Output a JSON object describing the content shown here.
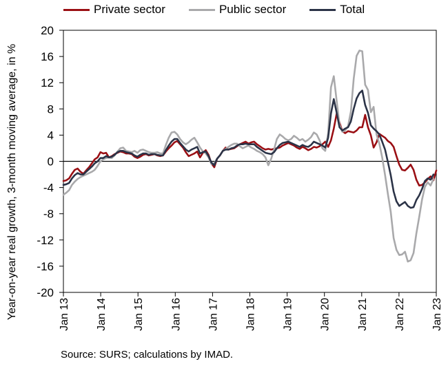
{
  "legend": [
    {
      "label": "Private sector",
      "color": "#9a0f14"
    },
    {
      "label": "Public sector",
      "color": "#a9a9ab"
    },
    {
      "label": "Total",
      "color": "#2b3347"
    }
  ],
  "source": "Source: SURS; calculations by IMAD.",
  "chart_data": {
    "type": "line",
    "title": "",
    "ylabel": "Year-on-year real growth, 3-month moving average, in %",
    "xlabel": "",
    "ylim": [
      -20,
      20
    ],
    "yticks": [
      20,
      16,
      12,
      8,
      4,
      0,
      -4,
      -8,
      -12,
      -16,
      -20
    ],
    "xrange": [
      "Jan 13",
      "Jan 23"
    ],
    "xticks": [
      "Jan 13",
      "Jan 14",
      "Jan 15",
      "Jan 16",
      "Jan 17",
      "Jan 18",
      "Jan 19",
      "Jan 20",
      "Jan 21",
      "Jan 22",
      "Jan 23"
    ],
    "grid": false,
    "legend_position": "top",
    "series": [
      {
        "name": "Private sector",
        "color": "#9a0f14",
        "values": [
          -3.0,
          -2.9,
          -2.6,
          -1.9,
          -1.3,
          -1.1,
          -1.6,
          -1.9,
          -1.4,
          -0.9,
          -0.3,
          0.3,
          0.6,
          1.4,
          1.2,
          1.3,
          0.6,
          0.8,
          1.1,
          1.3,
          1.5,
          1.4,
          1.2,
          1.2,
          1.1,
          0.7,
          0.5,
          0.7,
          1.0,
          1.1,
          0.9,
          1.0,
          1.1,
          0.9,
          0.8,
          0.9,
          1.5,
          2.0,
          2.4,
          2.9,
          3.1,
          2.6,
          2.1,
          1.4,
          0.8,
          1.0,
          1.2,
          1.5,
          0.6,
          1.3,
          1.7,
          1.0,
          -0.3,
          -0.9,
          0.4,
          0.9,
          1.6,
          2.1,
          1.8,
          1.9,
          2.0,
          2.3,
          2.6,
          2.8,
          3.0,
          2.7,
          2.9,
          3.0,
          2.6,
          2.3,
          2.0,
          1.8,
          1.9,
          1.8,
          1.9,
          2.0,
          2.1,
          2.4,
          2.6,
          2.8,
          2.6,
          2.4,
          2.1,
          1.9,
          2.2,
          2.0,
          1.7,
          1.9,
          2.2,
          2.1,
          2.3,
          2.6,
          3.0,
          2.2,
          3.2,
          5.0,
          7.3,
          5.9,
          4.6,
          4.3,
          4.6,
          4.5,
          4.4,
          4.7,
          5.2,
          5.2,
          7.1,
          5.2,
          4.0,
          2.1,
          2.9,
          4.2,
          3.9,
          3.6,
          3.1,
          2.8,
          2.2,
          0.8,
          -0.5,
          -1.3,
          -1.4,
          -1.0,
          -0.5,
          -1.3,
          -2.8,
          -3.7,
          -3.6,
          -3.2,
          -2.7,
          -2.3,
          -2.9,
          -1.4
        ]
      },
      {
        "name": "Public sector",
        "color": "#a9a9ab",
        "values": [
          -5.1,
          -4.8,
          -4.4,
          -3.6,
          -3.1,
          -2.7,
          -2.4,
          -2.2,
          -2.0,
          -1.8,
          -1.6,
          -1.3,
          -0.7,
          0.0,
          0.3,
          0.5,
          0.6,
          0.5,
          0.9,
          1.5,
          2.0,
          2.1,
          1.6,
          1.5,
          1.4,
          1.6,
          1.3,
          1.7,
          1.8,
          1.6,
          1.4,
          1.3,
          1.3,
          1.4,
          1.2,
          1.2,
          2.5,
          3.6,
          4.4,
          4.5,
          4.1,
          3.4,
          2.9,
          2.6,
          2.9,
          3.3,
          3.6,
          2.9,
          2.1,
          1.5,
          1.2,
          0.6,
          -0.4,
          -0.3,
          0.4,
          0.9,
          1.6,
          1.9,
          2.2,
          2.5,
          2.7,
          2.7,
          2.3,
          2.0,
          2.2,
          2.4,
          2.1,
          1.9,
          1.6,
          1.4,
          1.1,
          0.6,
          -0.6,
          0.4,
          1.8,
          3.4,
          4.1,
          3.8,
          3.4,
          3.2,
          3.4,
          3.9,
          3.6,
          3.2,
          3.4,
          3.0,
          3.3,
          3.7,
          4.4,
          4.1,
          3.2,
          2.0,
          1.6,
          4.3,
          11.3,
          13.0,
          9.2,
          5.6,
          4.5,
          4.7,
          5.4,
          7.6,
          12.6,
          16.1,
          16.9,
          16.8,
          11.7,
          10.9,
          7.5,
          8.3,
          4.1,
          2.7,
          0.6,
          -2.1,
          -5.0,
          -7.7,
          -11.7,
          -13.5,
          -14.3,
          -14.2,
          -13.8,
          -15.3,
          -15.1,
          -14.0,
          -11.0,
          -8.5,
          -5.8,
          -3.9,
          -3.2,
          -3.7,
          -2.7
        ]
      },
      {
        "name": "Total",
        "color": "#2b3347",
        "values": [
          -3.6,
          -3.5,
          -3.3,
          -2.6,
          -2.1,
          -1.8,
          -2.0,
          -2.0,
          -1.6,
          -1.2,
          -0.8,
          -0.3,
          0.0,
          0.5,
          0.5,
          0.8,
          0.6,
          0.7,
          1.0,
          1.4,
          1.6,
          1.6,
          1.4,
          1.3,
          1.2,
          0.9,
          0.7,
          1.0,
          1.2,
          1.2,
          1.0,
          1.1,
          1.1,
          1.0,
          0.9,
          0.9,
          1.7,
          2.4,
          3.0,
          3.4,
          3.4,
          2.8,
          2.3,
          1.8,
          1.5,
          1.8,
          2.0,
          2.2,
          1.2,
          1.4,
          1.5,
          0.8,
          -0.2,
          -0.6,
          0.4,
          0.9,
          1.6,
          1.8,
          1.8,
          2.0,
          2.1,
          2.4,
          2.6,
          2.6,
          2.7,
          2.6,
          2.6,
          2.6,
          2.2,
          1.9,
          1.6,
          1.3,
          1.2,
          1.1,
          1.4,
          2.0,
          2.5,
          2.8,
          2.9,
          3.0,
          2.8,
          2.6,
          2.4,
          2.2,
          2.5,
          2.3,
          2.2,
          2.5,
          3.0,
          2.8,
          2.6,
          2.4,
          2.1,
          3.6,
          7.3,
          9.5,
          7.4,
          5.2,
          4.7,
          5.0,
          5.2,
          6.1,
          8.0,
          9.6,
          10.4,
          10.8,
          8.6,
          7.4,
          5.5,
          5.0,
          4.6,
          4.1,
          3.0,
          1.8,
          -0.1,
          -2.1,
          -4.6,
          -6.1,
          -6.8,
          -6.5,
          -6.2,
          -6.8,
          -7.1,
          -7.0,
          -5.9,
          -5.2,
          -4.2,
          -3.0,
          -2.6,
          -2.8,
          -2.0
        ]
      }
    ]
  }
}
